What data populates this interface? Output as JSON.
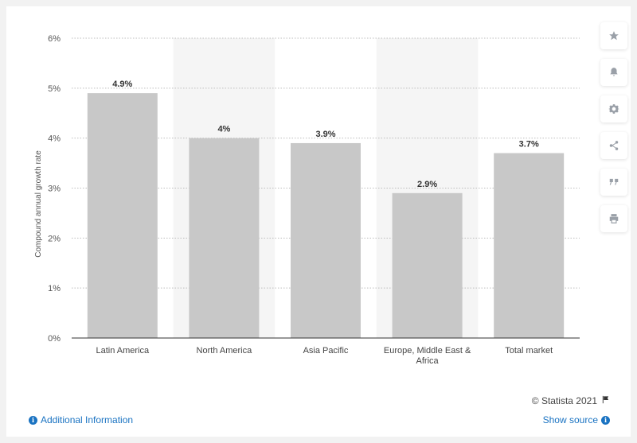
{
  "chart_data": {
    "type": "bar",
    "categories": [
      "Latin America",
      "North America",
      "Asia Pacific",
      "Europe, Middle East & Africa",
      "Total market"
    ],
    "values": [
      4.9,
      4.0,
      3.9,
      2.9,
      3.7
    ],
    "value_labels": [
      "4.9%",
      "4%",
      "3.9%",
      "2.9%",
      "3.7%"
    ],
    "ylabel": "Compound annual growth rate",
    "ylim": [
      0,
      6
    ],
    "yticks": [
      0,
      1,
      2,
      3,
      4,
      5,
      6
    ],
    "ytick_labels": [
      "0%",
      "1%",
      "2%",
      "3%",
      "4%",
      "5%",
      "6%"
    ],
    "grid": true,
    "bar_color": "#c8c8c8",
    "band_color": "#f5f5f5"
  },
  "footer": {
    "credit": "© Statista 2021",
    "additional_info": "Additional Information",
    "show_source": "Show source"
  },
  "tools": [
    "star-icon",
    "bell-icon",
    "gear-icon",
    "share-icon",
    "quote-icon",
    "print-icon"
  ]
}
